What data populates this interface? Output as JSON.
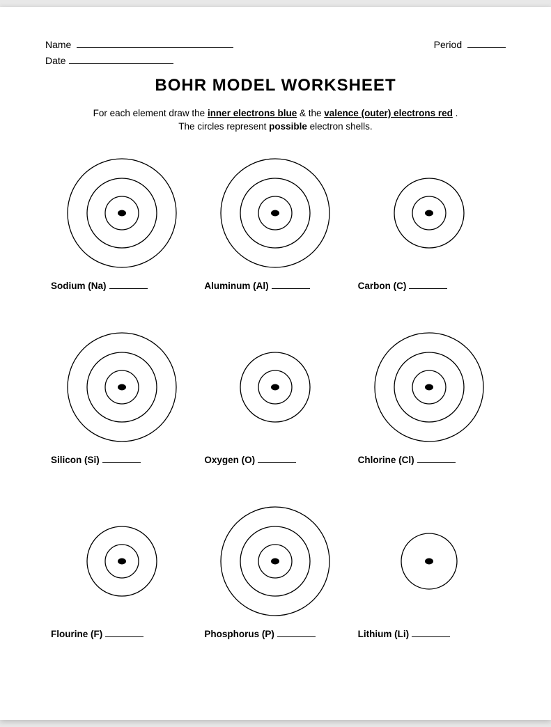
{
  "header": {
    "name_label": "Name",
    "period_label": "Period",
    "date_label": "Date"
  },
  "title": "BOHR MODEL WORKSHEET",
  "instructions": {
    "prefix": "For each element draw the ",
    "inner": "inner electrons blue",
    "amp": " & the ",
    "valence": "valence (outer) electrons red",
    "period": ".",
    "sub_prefix": "The circles represent ",
    "sub_bold": "possible",
    "sub_suffix": " electron shells."
  },
  "style": {
    "stroke": "#000000",
    "stroke_width": 1.3,
    "nucleus_rx": 6,
    "nucleus_ry": 4.5,
    "ring_radii_3": [
      24,
      50,
      78
    ],
    "ring_radii_2": [
      24,
      50
    ],
    "ring_radii_1": [
      40
    ]
  },
  "elements": [
    {
      "label": "Sodium (Na)",
      "rings": 3
    },
    {
      "label": "Aluminum (Al)",
      "rings": 3
    },
    {
      "label": "Carbon (C)",
      "rings": 2
    },
    {
      "label": "Silicon (Si)",
      "rings": 3
    },
    {
      "label": "Oxygen (O)",
      "rings": 2
    },
    {
      "label": "Chlorine (Cl)",
      "rings": 3
    },
    {
      "label": "Flourine (F)",
      "rings": 2
    },
    {
      "label": "Phosphorus (P)",
      "rings": 3
    },
    {
      "label": "Lithium (Li)",
      "rings": 1
    }
  ]
}
